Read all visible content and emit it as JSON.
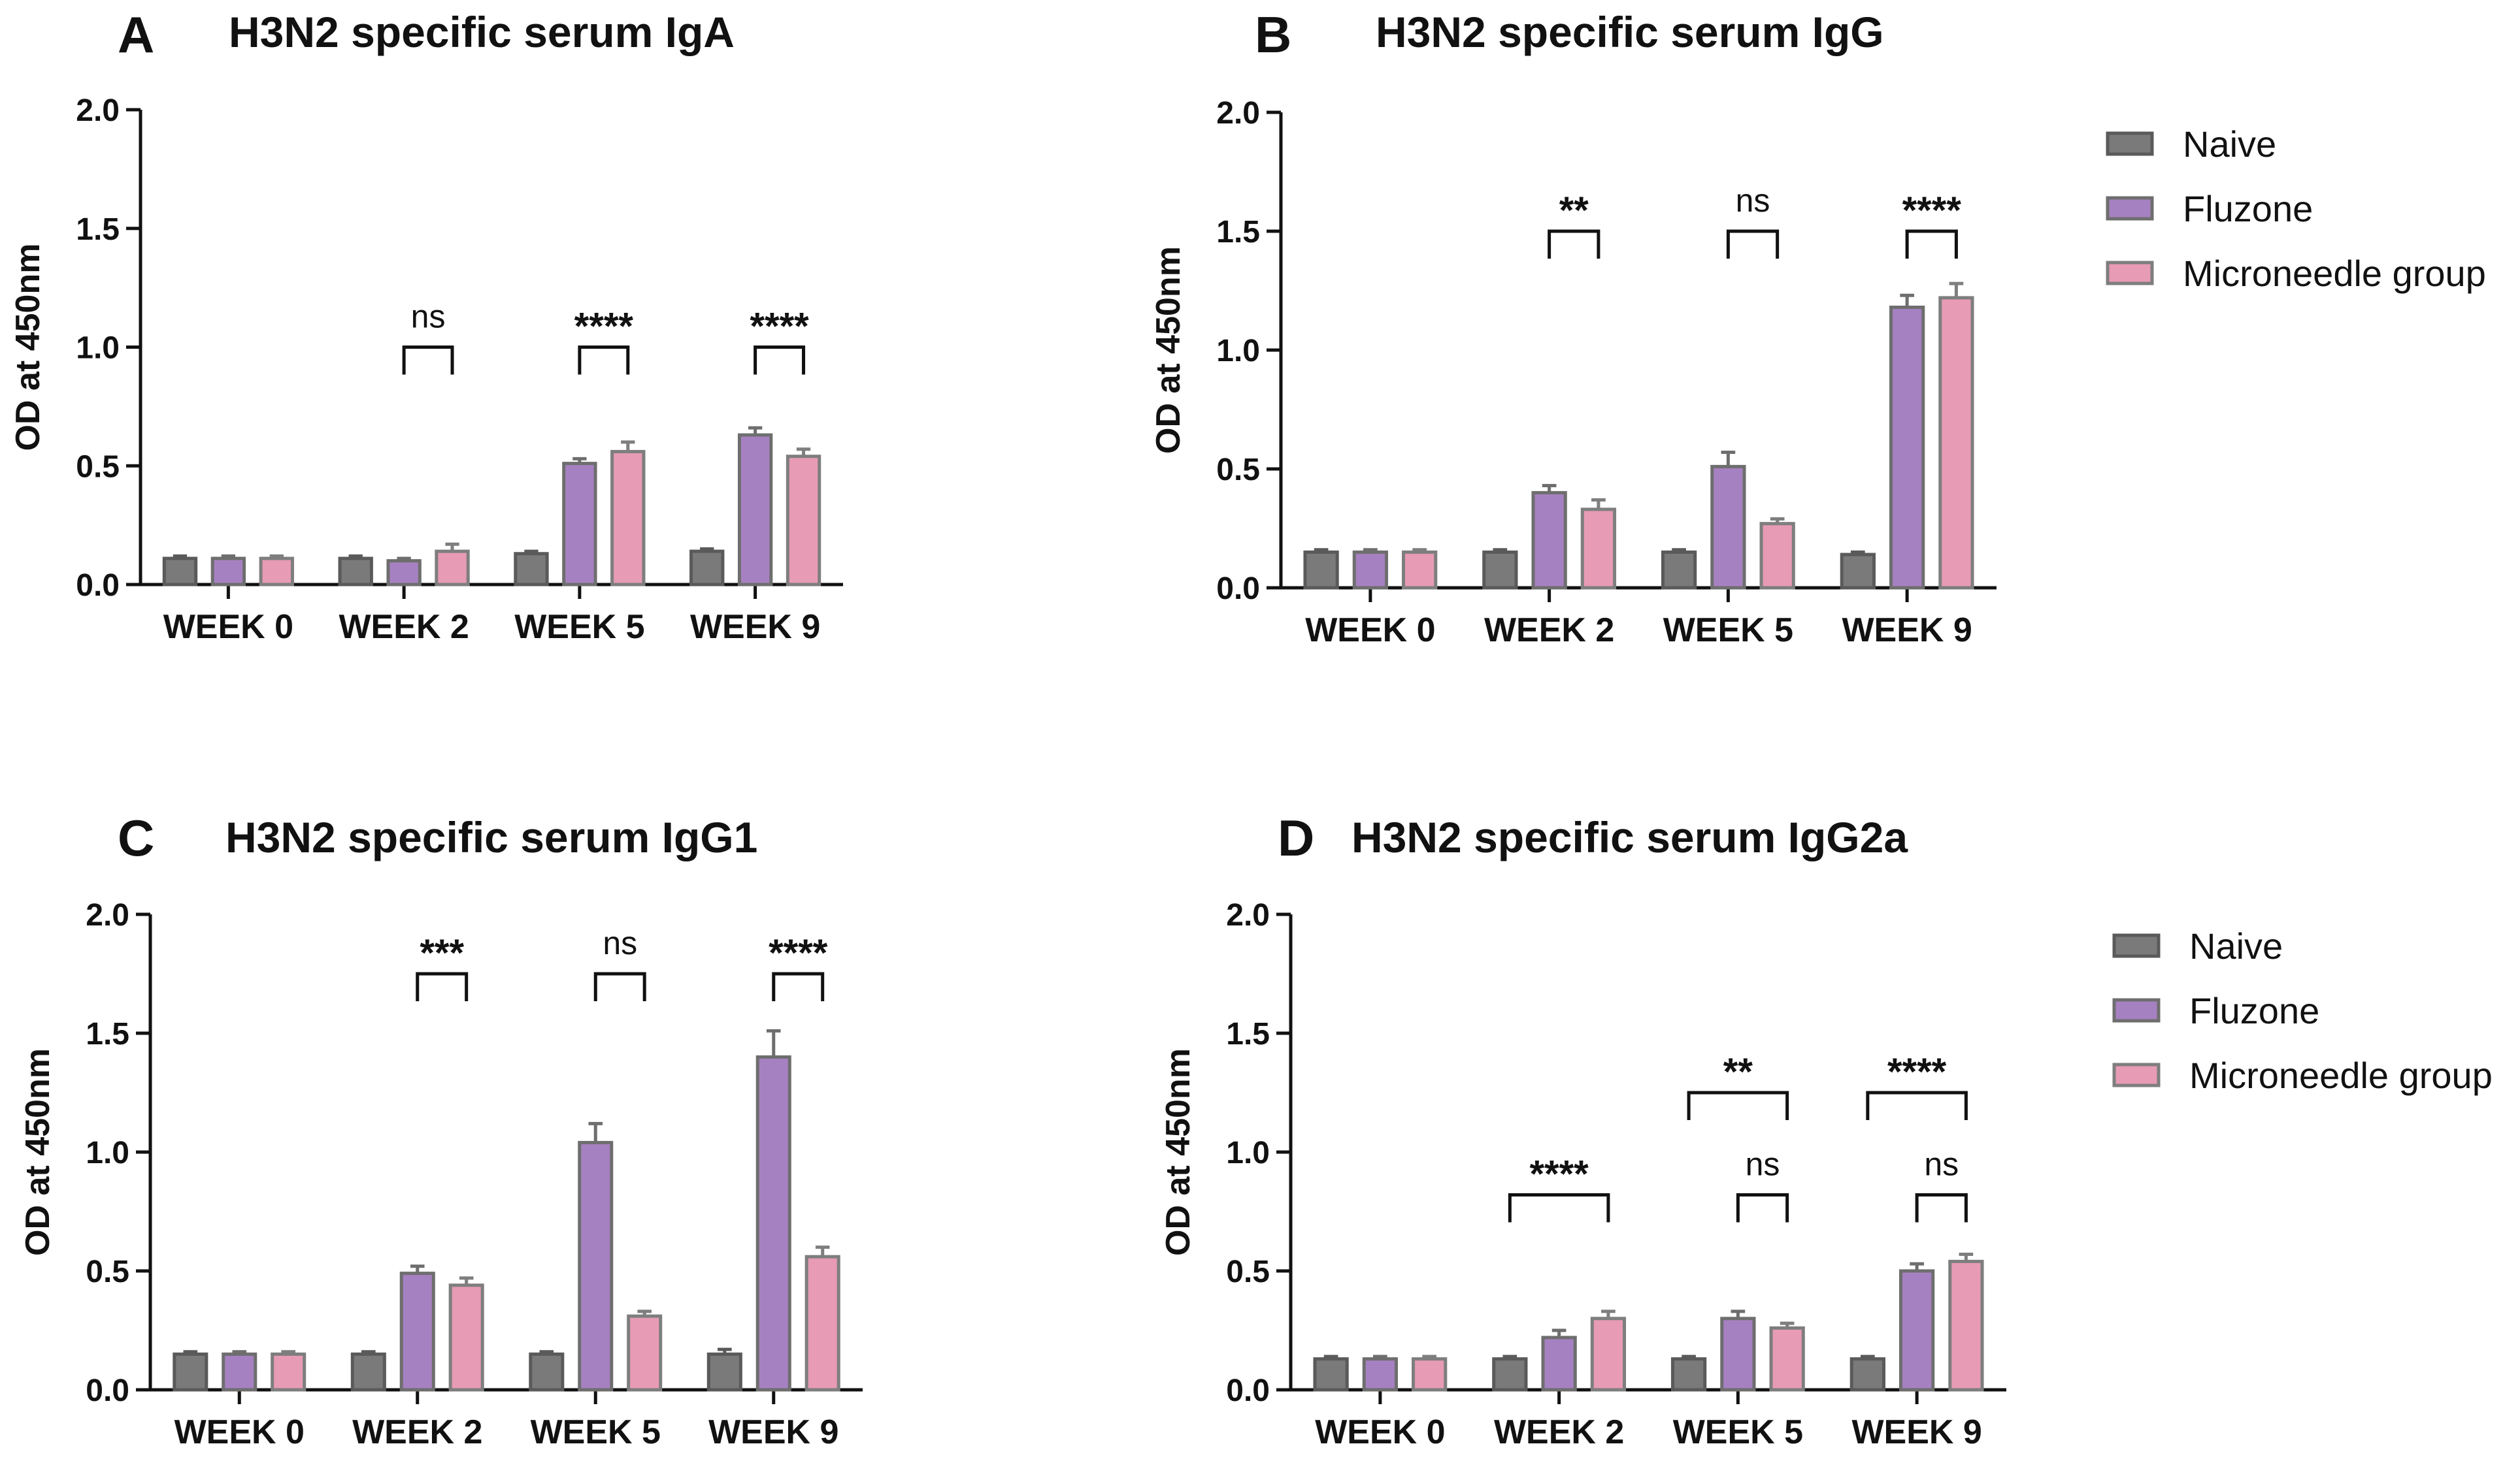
{
  "legend": {
    "items": [
      {
        "name": "Naive",
        "color": "#7a7a7a"
      },
      {
        "name": "Fluzone",
        "color": "#a681c1"
      },
      {
        "name": "Microneedle group",
        "color": "#e79bb5"
      }
    ]
  },
  "chart_data": [
    {
      "type": "bar",
      "letter": "A",
      "title": "H3N2 specific serum IgA",
      "xlabel": "",
      "ylabel": "OD at 450nm",
      "ylim": [
        0,
        2.0
      ],
      "yticks": [
        "0.0",
        "0.5",
        "1.0",
        "1.5",
        "2.0"
      ],
      "categories": [
        "WEEK 0",
        "WEEK 2",
        "WEEK 5",
        "WEEK 9"
      ],
      "series": [
        {
          "name": "Naive",
          "values": [
            0.11,
            0.11,
            0.13,
            0.14
          ],
          "errors": [
            0.01,
            0.01,
            0.01,
            0.01
          ]
        },
        {
          "name": "Fluzone",
          "values": [
            0.11,
            0.1,
            0.51,
            0.63
          ],
          "errors": [
            0.01,
            0.01,
            0.02,
            0.03
          ]
        },
        {
          "name": "Microneedle group",
          "values": [
            0.11,
            0.14,
            0.56,
            0.54
          ],
          "errors": [
            0.01,
            0.03,
            0.04,
            0.03
          ]
        }
      ],
      "annotations": [
        {
          "category": 1,
          "from": 1,
          "to": 2,
          "label": "ns",
          "level": 1.0
        },
        {
          "category": 2,
          "from": 1,
          "to": 2,
          "label": "****",
          "level": 1.0
        },
        {
          "category": 3,
          "from": 1,
          "to": 2,
          "label": "****",
          "level": 1.0
        }
      ]
    },
    {
      "type": "bar",
      "letter": "B",
      "title": "H3N2 specific serum IgG",
      "xlabel": "",
      "ylabel": "OD at 450nm",
      "ylim": [
        0,
        2.0
      ],
      "yticks": [
        "0.0",
        "0.5",
        "1.0",
        "1.5",
        "2.0"
      ],
      "categories": [
        "WEEK 0",
        "WEEK 2",
        "WEEK 5",
        "WEEK 9"
      ],
      "series": [
        {
          "name": "Naive",
          "values": [
            0.15,
            0.15,
            0.15,
            0.14
          ],
          "errors": [
            0.01,
            0.01,
            0.01,
            0.01
          ]
        },
        {
          "name": "Fluzone",
          "values": [
            0.15,
            0.4,
            0.51,
            1.18
          ],
          "errors": [
            0.01,
            0.03,
            0.06,
            0.05
          ]
        },
        {
          "name": "Microneedle group",
          "values": [
            0.15,
            0.33,
            0.27,
            1.22
          ],
          "errors": [
            0.01,
            0.04,
            0.02,
            0.06
          ]
        }
      ],
      "annotations": [
        {
          "category": 1,
          "from": 1,
          "to": 2,
          "label": "**",
          "level": 1.5
        },
        {
          "category": 2,
          "from": 1,
          "to": 2,
          "label": "ns",
          "level": 1.5
        },
        {
          "category": 3,
          "from": 1,
          "to": 2,
          "label": "****",
          "level": 1.5
        }
      ]
    },
    {
      "type": "bar",
      "letter": "C",
      "title": "H3N2 specific serum IgG1",
      "xlabel": "",
      "ylabel": "OD at 450nm",
      "ylim": [
        0,
        2.0
      ],
      "yticks": [
        "0.0",
        "0.5",
        "1.0",
        "1.5",
        "2.0"
      ],
      "categories": [
        "WEEK 0",
        "WEEK 2",
        "WEEK 5",
        "WEEK 9"
      ],
      "series": [
        {
          "name": "Naive",
          "values": [
            0.15,
            0.15,
            0.15,
            0.15
          ],
          "errors": [
            0.01,
            0.01,
            0.01,
            0.02
          ]
        },
        {
          "name": "Fluzone",
          "values": [
            0.15,
            0.49,
            1.04,
            1.4
          ],
          "errors": [
            0.01,
            0.03,
            0.08,
            0.11
          ]
        },
        {
          "name": "Microneedle group",
          "values": [
            0.15,
            0.44,
            0.31,
            0.56
          ],
          "errors": [
            0.01,
            0.03,
            0.02,
            0.04
          ]
        }
      ],
      "annotations": [
        {
          "category": 1,
          "from": 1,
          "to": 2,
          "label": "***",
          "level": 1.75
        },
        {
          "category": 2,
          "from": 1,
          "to": 2,
          "label": "ns",
          "level": 1.75
        },
        {
          "category": 3,
          "from": 1,
          "to": 2,
          "label": "****",
          "level": 1.75
        }
      ]
    },
    {
      "type": "bar",
      "letter": "D",
      "title": "H3N2 specific serum IgG2a",
      "xlabel": "",
      "ylabel": "OD at 450nm",
      "ylim": [
        0,
        2.0
      ],
      "yticks": [
        "0.0",
        "0.5",
        "1.0",
        "1.5",
        "2.0"
      ],
      "categories": [
        "WEEK 0",
        "WEEK 2",
        "WEEK 5",
        "WEEK 9"
      ],
      "series": [
        {
          "name": "Naive",
          "values": [
            0.13,
            0.13,
            0.13,
            0.13
          ],
          "errors": [
            0.01,
            0.01,
            0.01,
            0.01
          ]
        },
        {
          "name": "Fluzone",
          "values": [
            0.13,
            0.22,
            0.3,
            0.5
          ],
          "errors": [
            0.01,
            0.03,
            0.03,
            0.03
          ]
        },
        {
          "name": "Microneedle group",
          "values": [
            0.13,
            0.3,
            0.26,
            0.54
          ],
          "errors": [
            0.01,
            0.03,
            0.02,
            0.03
          ]
        }
      ],
      "annotations": [
        {
          "category": 1,
          "from": 0,
          "to": 2,
          "label": "****",
          "level": 0.82
        },
        {
          "category": 2,
          "from": 0,
          "to": 2,
          "label": "**",
          "level": 1.25
        },
        {
          "category": 2,
          "from": 1,
          "to": 2,
          "label": "ns",
          "level": 0.82
        },
        {
          "category": 3,
          "from": 0,
          "to": 2,
          "label": "****",
          "level": 1.25
        },
        {
          "category": 3,
          "from": 1,
          "to": 2,
          "label": "ns",
          "level": 0.82
        }
      ]
    }
  ]
}
